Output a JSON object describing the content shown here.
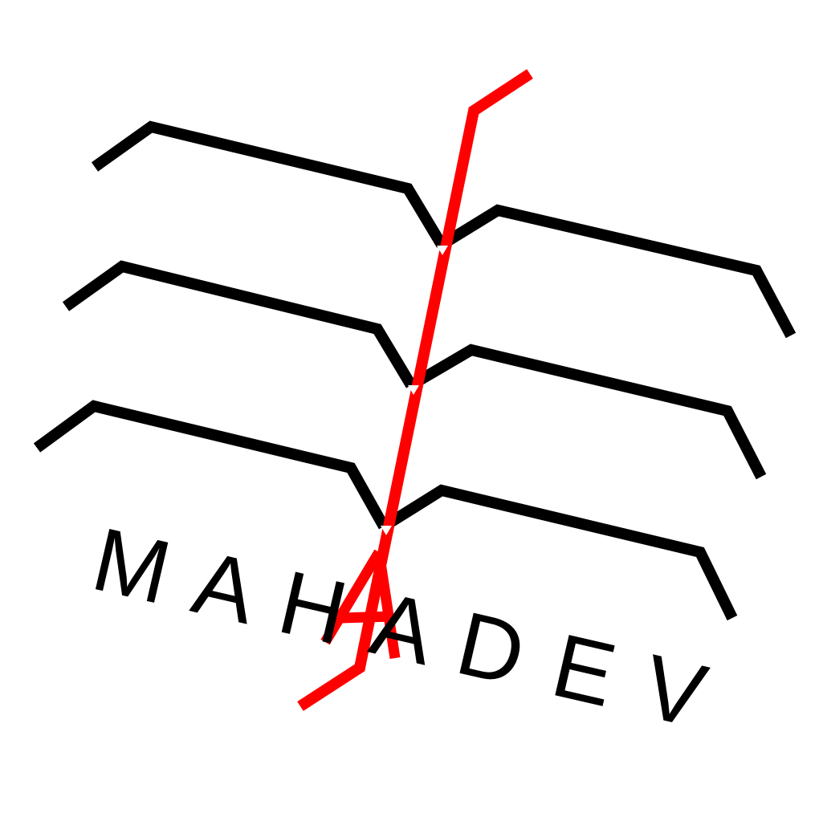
{
  "logo": {
    "wordmark": "MAHADEV",
    "letters": [
      "M",
      "A",
      "H",
      "A",
      "D",
      "E",
      "V"
    ],
    "colors": {
      "background": "#ffffff",
      "stroke": "#000000",
      "accent": "#ff0000",
      "text": "#000000"
    },
    "icon": "leaf-chevron-icon"
  }
}
